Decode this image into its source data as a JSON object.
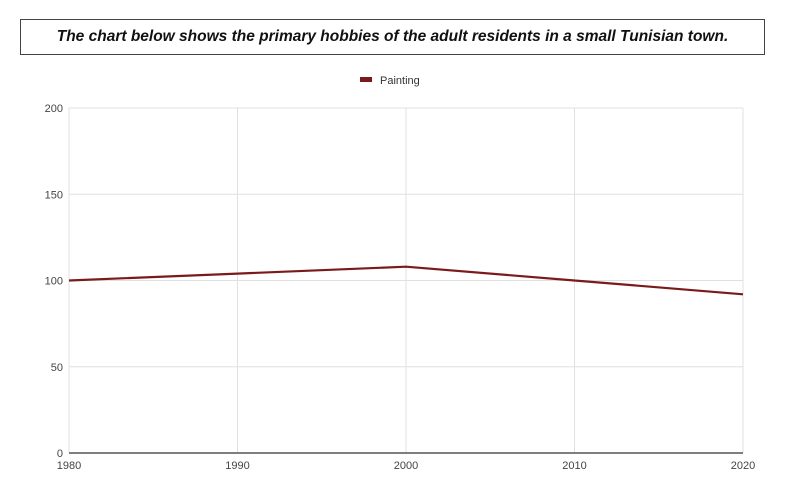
{
  "chart_data": {
    "type": "line",
    "title": "The chart below shows the primary hobbies of the adult residents in a small Tunisian town.",
    "xlabel": "",
    "ylabel": "",
    "x": [
      "1980",
      "1990",
      "2000",
      "2010",
      "2020"
    ],
    "series": [
      {
        "name": "Painting",
        "color": "#7b1a1a",
        "values": [
          100,
          104,
          108,
          100,
          92
        ]
      }
    ],
    "ylim": [
      0,
      200
    ],
    "yticks": [
      0,
      50,
      100,
      150,
      200
    ],
    "grid": true,
    "legend": "top-center"
  }
}
